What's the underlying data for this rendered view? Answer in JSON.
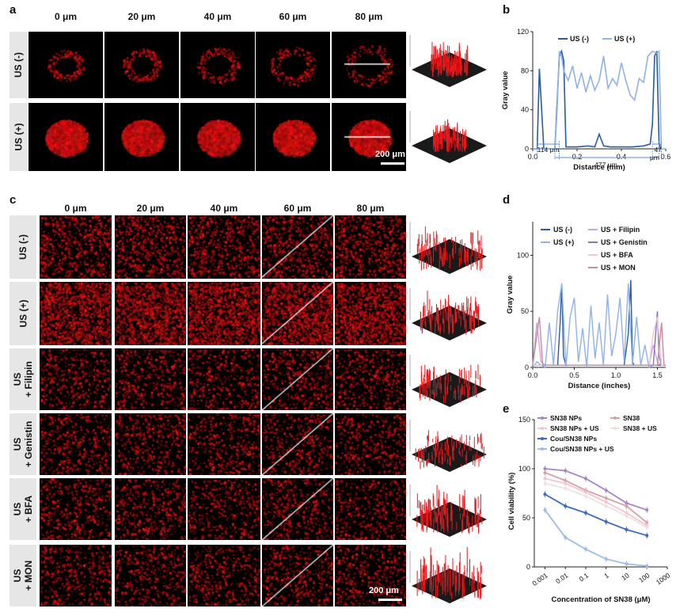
{
  "panels": {
    "a": "a",
    "b": "b",
    "c": "c",
    "d": "d",
    "e": "e"
  },
  "panel_a": {
    "depths": [
      "0 μm",
      "20 μm",
      "40 μm",
      "60 μm",
      "80 μm"
    ],
    "rows": [
      "US (-)",
      "US (+)"
    ],
    "scale_bar": "200 μm"
  },
  "panel_c": {
    "depths": [
      "0 μm",
      "20 μm",
      "40 μm",
      "60 μm",
      "80 μm"
    ],
    "rows": [
      "US (-)",
      "US (+)",
      "US\n+ Filipin",
      "US\n+ Genistin",
      "US\n+ BFA",
      "US\n+ MON"
    ],
    "scale_bar": "200 μm"
  },
  "colors": {
    "fluor": "#e8181c",
    "dark_blue": "#2c5aa0",
    "light_blue": "#8fb2e8",
    "purple_light": "#c8a6d8",
    "purple": "#8b6fc0",
    "pink_light": "#f0c8d4",
    "mauve": "#c88aa0",
    "sn38_np": "#a883c8",
    "sn38": "#d7a0a8",
    "sn38_np_us": "#f3c6cf",
    "sn38_us": "#f0dfe3",
    "cou": "#3a6bbf",
    "cou_us": "#9bbcec"
  },
  "chart_data": [
    {
      "id": "b",
      "type": "line",
      "title": "",
      "xlabel": "Distance (mm)",
      "ylabel": "Gray value",
      "xlim": [
        0,
        0.6
      ],
      "ylim": [
        0,
        120
      ],
      "xticks": [
        "0.0",
        "0.2",
        "0.4",
        "0.6"
      ],
      "yticks": [
        "0",
        "40",
        "80",
        "120"
      ],
      "series": [
        {
          "name": "US (-)",
          "x": [
            0,
            0.02,
            0.03,
            0.05,
            0.06,
            0.07,
            0.1,
            0.12,
            0.13,
            0.14,
            0.15,
            0.2,
            0.25,
            0.28,
            0.3,
            0.32,
            0.35,
            0.4,
            0.45,
            0.5,
            0.53,
            0.54,
            0.55,
            0.56,
            0.57,
            0.58
          ],
          "y": [
            0,
            0,
            82,
            0,
            0,
            0,
            0,
            95,
            100,
            90,
            2,
            2,
            3,
            2,
            15,
            3,
            2,
            2,
            2,
            3,
            5,
            25,
            95,
            100,
            5,
            0
          ]
        },
        {
          "name": "US (+)",
          "x": [
            0,
            0.08,
            0.1,
            0.11,
            0.12,
            0.13,
            0.14,
            0.16,
            0.18,
            0.2,
            0.22,
            0.24,
            0.26,
            0.28,
            0.3,
            0.32,
            0.34,
            0.36,
            0.38,
            0.4,
            0.42,
            0.44,
            0.46,
            0.48,
            0.5,
            0.52,
            0.54,
            0.56,
            0.57,
            0.58,
            0.6
          ],
          "y": [
            0,
            0,
            0,
            40,
            100,
            95,
            80,
            70,
            85,
            62,
            78,
            58,
            75,
            60,
            70,
            95,
            62,
            72,
            65,
            88,
            70,
            55,
            50,
            72,
            68,
            95,
            100,
            98,
            100,
            0,
            0
          ]
        }
      ],
      "annotations": [
        "114 μm",
        "477 μm",
        "47\nμm"
      ],
      "legend": [
        "US (-)",
        "US (+)"
      ]
    },
    {
      "id": "d",
      "type": "line",
      "xlabel": "Distance (inches)",
      "ylabel": "Gray value",
      "xlim": [
        0,
        1.6
      ],
      "ylim": [
        0,
        130
      ],
      "xticks": [
        "0.0",
        "0.5",
        "1.0",
        "1.5"
      ],
      "yticks": [
        "0",
        "50",
        "100"
      ],
      "legend": [
        "US (-)",
        "US (+)",
        "US + Filipin",
        "US + Genistin",
        "US + BFA",
        "US + MON"
      ],
      "series": [
        {
          "name": "US (-)",
          "x": [
            0,
            0.3,
            0.33,
            0.35,
            0.37,
            0.4,
            1.1,
            1.15,
            1.18,
            1.2,
            1.22,
            1.25,
            1.6
          ],
          "y": [
            2,
            2,
            40,
            75,
            10,
            2,
            2,
            30,
            78,
            5,
            2,
            2,
            2
          ]
        },
        {
          "name": "US (+)",
          "x": [
            0,
            0.05,
            0.1,
            0.15,
            0.2,
            0.25,
            0.3,
            0.35,
            0.4,
            0.45,
            0.5,
            0.55,
            0.6,
            0.65,
            0.7,
            0.75,
            0.8,
            0.85,
            0.9,
            0.95,
            1.0,
            1.05,
            1.1,
            1.15,
            1.2,
            1.25,
            1.3,
            1.35,
            1.4,
            1.45
          ],
          "y": [
            0,
            5,
            2,
            0,
            40,
            2,
            50,
            75,
            0,
            45,
            62,
            5,
            35,
            0,
            55,
            8,
            40,
            2,
            65,
            10,
            30,
            62,
            5,
            75,
            2,
            45,
            2,
            20,
            0,
            2
          ]
        },
        {
          "name": "US + Filipin",
          "x": [
            0,
            0.05,
            0.1,
            0.15,
            1.4,
            1.45,
            1.5,
            1.55,
            1.6
          ],
          "y": [
            2,
            40,
            5,
            2,
            2,
            20,
            5,
            2,
            2
          ]
        },
        {
          "name": "US + Genistin",
          "x": [
            0,
            0.1,
            1.45,
            1.5,
            1.52,
            1.55,
            1.6
          ],
          "y": [
            2,
            2,
            2,
            50,
            10,
            2,
            2
          ]
        },
        {
          "name": "US + BFA",
          "x": [
            0,
            0.1,
            1.4,
            1.45,
            1.5,
            1.55,
            1.6
          ],
          "y": [
            2,
            2,
            2,
            30,
            45,
            2,
            2
          ]
        },
        {
          "name": "US + MON",
          "x": [
            0,
            0.08,
            0.12,
            1.5,
            1.55,
            1.58,
            1.6
          ],
          "y": [
            2,
            45,
            2,
            2,
            40,
            2,
            2
          ]
        }
      ]
    },
    {
      "id": "e",
      "type": "line",
      "xlabel": "Concentration of SN38 (μM)",
      "ylabel": "Cell viability (%)",
      "xscale": "log",
      "xlim": [
        0.0003,
        1000
      ],
      "ylim": [
        0,
        150
      ],
      "xticks": [
        "0.001",
        "0.01",
        "0.1",
        "1",
        "10",
        "100",
        "1000"
      ],
      "yticks": [
        "0",
        "50",
        "100",
        "150"
      ],
      "legend": [
        "SN38 NPs",
        "SN38",
        "SN38 NPs + US",
        "SN38 + US",
        "Cou/SN38 NPs",
        "Cou/SN38 NPs + US"
      ],
      "x": [
        0.001,
        0.01,
        0.1,
        1,
        10,
        100
      ],
      "series": [
        {
          "name": "SN38 NPs",
          "values": [
            100,
            98,
            90,
            78,
            65,
            58
          ]
        },
        {
          "name": "SN38",
          "values": [
            96,
            88,
            78,
            70,
            62,
            45
          ]
        },
        {
          "name": "SN38 NPs + US",
          "values": [
            90,
            85,
            76,
            66,
            55,
            42
          ]
        },
        {
          "name": "SN38 + US",
          "values": [
            85,
            80,
            72,
            62,
            52,
            40
          ]
        },
        {
          "name": "Cou/SN38 NPs",
          "values": [
            74,
            62,
            55,
            46,
            38,
            32
          ]
        },
        {
          "name": "Cou/SN38 NPs + US",
          "values": [
            58,
            30,
            18,
            8,
            3,
            1
          ]
        }
      ]
    }
  ]
}
